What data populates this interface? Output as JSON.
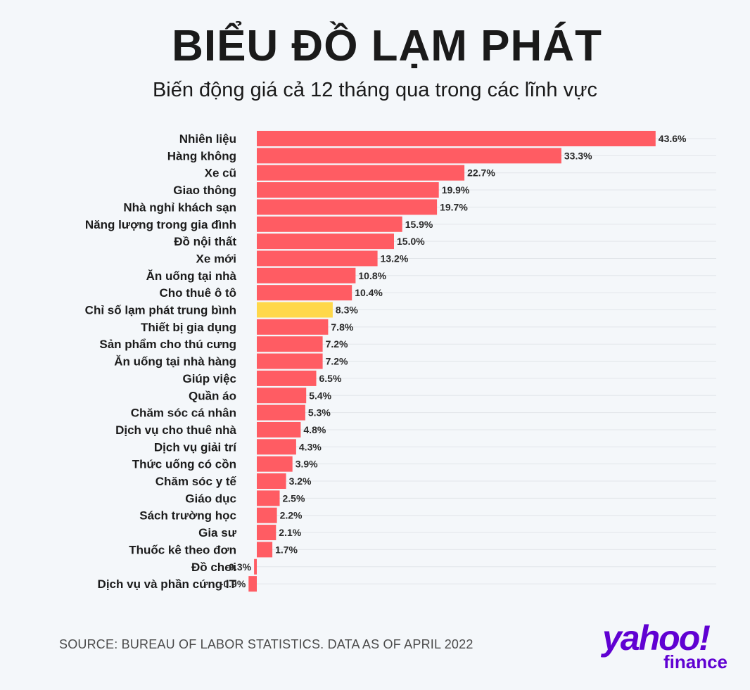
{
  "title": "BIỂU ĐỒ LẠM PHÁT",
  "subtitle": "Biến động giá cả 12 tháng qua trong các lĩnh vực",
  "source": "SOURCE: BUREAU OF LABOR STATISTICS. DATA AS OF APRIL 2022",
  "logo": {
    "word": "yahoo!",
    "sub": "finance",
    "color": "#6001d2"
  },
  "colors": {
    "bar": "#ff5c63",
    "highlight": "#ffd84a",
    "grid": "#e2e6ea",
    "label": "#1b1b1b",
    "value": "#2a2a2a"
  },
  "chart_data": {
    "type": "bar",
    "orientation": "horizontal",
    "title": "BIỂU ĐỒ LẠM PHÁT",
    "subtitle": "Biến động giá cả 12 tháng qua trong các lĩnh vực",
    "value_suffix": "%",
    "highlight_category": "Chỉ số lạm phát trung bình",
    "xlim": [
      -0.9,
      43.6
    ],
    "grid": true,
    "categories": [
      "Nhiên liệu",
      "Hàng không",
      "Xe cũ",
      "Giao thông",
      "Nhà nghỉ khách sạn",
      "Năng lượng trong gia đình",
      "Đồ nội thất",
      "Xe mới",
      "Ăn uống tại nhà",
      "Cho thuê ô tô",
      "Chỉ số lạm phát trung bình",
      "Thiết bị gia dụng",
      "Sản phẩm cho thú cưng",
      "Ăn uống tại nhà hàng",
      "Giúp việc",
      "Quần áo",
      "Chăm sóc cá nhân",
      "Dịch vụ cho thuê nhà",
      "Dịch vụ giải trí",
      "Thức uống có cồn",
      "Chăm sóc y tế",
      "Giáo dục",
      "Sách trường học",
      "Gia sư",
      "Thuốc kê theo đơn",
      "Đồ chơi",
      "Dịch vụ và phần cứng IT"
    ],
    "values": [
      43.6,
      33.3,
      22.7,
      19.9,
      19.7,
      15.9,
      15.0,
      13.2,
      10.8,
      10.4,
      8.3,
      7.8,
      7.2,
      7.2,
      6.5,
      5.4,
      5.3,
      4.8,
      4.3,
      3.9,
      3.2,
      2.5,
      2.2,
      2.1,
      1.7,
      -0.3,
      -0.9
    ],
    "value_labels": [
      "43.6%",
      "33.3%",
      "22.7%",
      "19.9%",
      "19.7%",
      "15.9%",
      "15.0%",
      "13.2%",
      "10.8%",
      "10.4%",
      "8.3%",
      "7.8%",
      "7.2%",
      "7.2%",
      "6.5%",
      "5.4%",
      "5.3%",
      "4.8%",
      "4.3%",
      "3.9%",
      "3.2%",
      "2.5%",
      "2.2%",
      "2.1%",
      "1.7%",
      "-0.3%",
      "-0.9%"
    ]
  }
}
